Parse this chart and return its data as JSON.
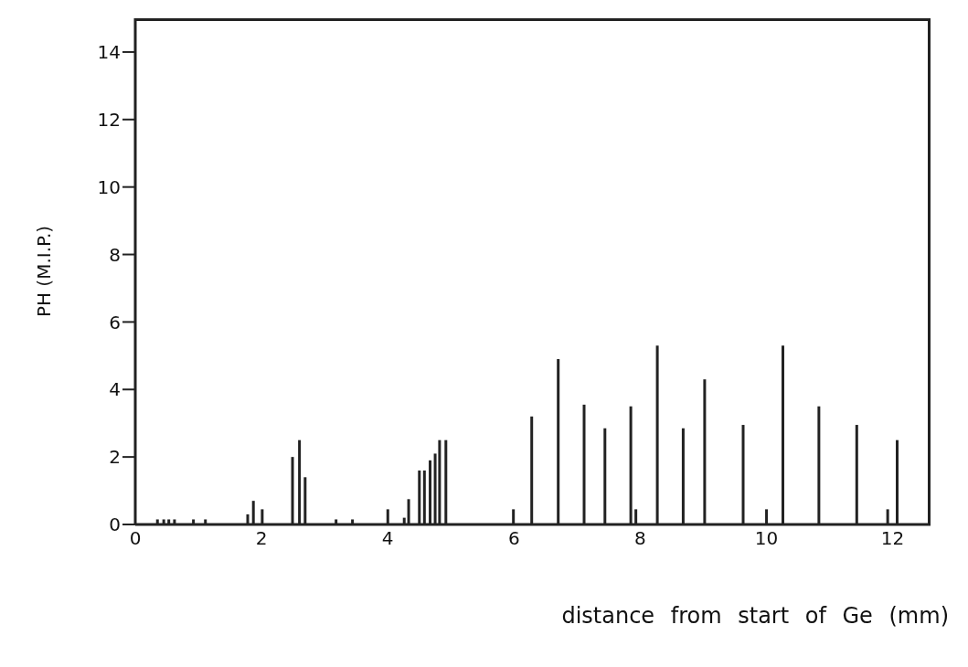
{
  "chart_data": {
    "type": "bar",
    "xlabel": "distance from start of Ge (mm)",
    "ylabel": "PH (M.I.P.)",
    "x": [
      0.35,
      0.45,
      0.53,
      0.62,
      0.92,
      1.11,
      1.78,
      1.87,
      2.01,
      2.49,
      2.6,
      2.69,
      3.18,
      3.44,
      4.0,
      4.26,
      4.33,
      4.5,
      4.58,
      4.67,
      4.75,
      4.82,
      4.92,
      5.99,
      6.28,
      6.7,
      7.11,
      7.44,
      7.85,
      7.93,
      8.27,
      8.68,
      9.02,
      9.63,
      10.0,
      10.26,
      10.83,
      11.43,
      11.92,
      12.07
    ],
    "values": [
      0.15,
      0.15,
      0.15,
      0.15,
      0.15,
      0.15,
      0.3,
      0.7,
      0.45,
      2.0,
      2.5,
      1.4,
      0.15,
      0.15,
      0.45,
      0.2,
      0.75,
      1.6,
      1.6,
      1.9,
      2.1,
      2.5,
      2.5,
      0.45,
      3.2,
      4.9,
      3.55,
      2.85,
      3.5,
      0.45,
      5.3,
      2.85,
      4.3,
      2.95,
      0.45,
      5.3,
      3.5,
      2.95,
      0.45,
      2.5
    ],
    "color": "#222222",
    "xlim": [
      0,
      12.6
    ],
    "xticks": [
      0,
      2,
      4,
      6,
      8,
      10,
      12
    ],
    "ylim": [
      0,
      15
    ],
    "yticks": [
      0,
      2,
      4,
      6,
      8,
      10,
      12,
      14
    ],
    "grid": false,
    "legend": false
  }
}
